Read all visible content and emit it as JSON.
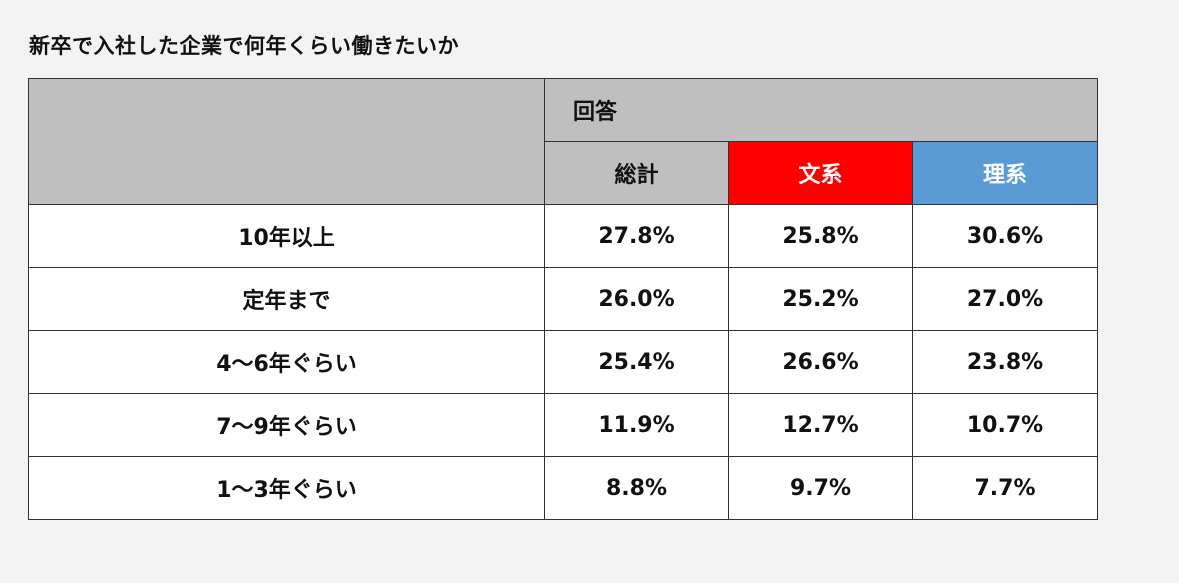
{
  "title": "新卒で入社した企業で何年くらい働きたいか",
  "colors": {
    "header_gray": "#bfbfbf",
    "bunkei_red": "#ff0000",
    "rikei_blue": "#5b9bd5"
  },
  "chart_data": {
    "type": "table",
    "title": "新卒で入社した企業で何年くらい働きたいか",
    "group_header": "回答",
    "columns": [
      "総計",
      "文系",
      "理系"
    ],
    "rows": [
      {
        "label": "10年以上",
        "values": [
          "27.8%",
          "25.8%",
          "30.6%"
        ]
      },
      {
        "label": "定年まで",
        "values": [
          "26.0%",
          "25.2%",
          "27.0%"
        ]
      },
      {
        "label": "4～6年ぐらい",
        "values": [
          "25.4%",
          "26.6%",
          "23.8%"
        ]
      },
      {
        "label": "7～9年ぐらい",
        "values": [
          "11.9%",
          "12.7%",
          "10.7%"
        ]
      },
      {
        "label": "1～3年ぐらい",
        "values": [
          "8.8%",
          "9.7%",
          "7.7%"
        ]
      }
    ]
  }
}
